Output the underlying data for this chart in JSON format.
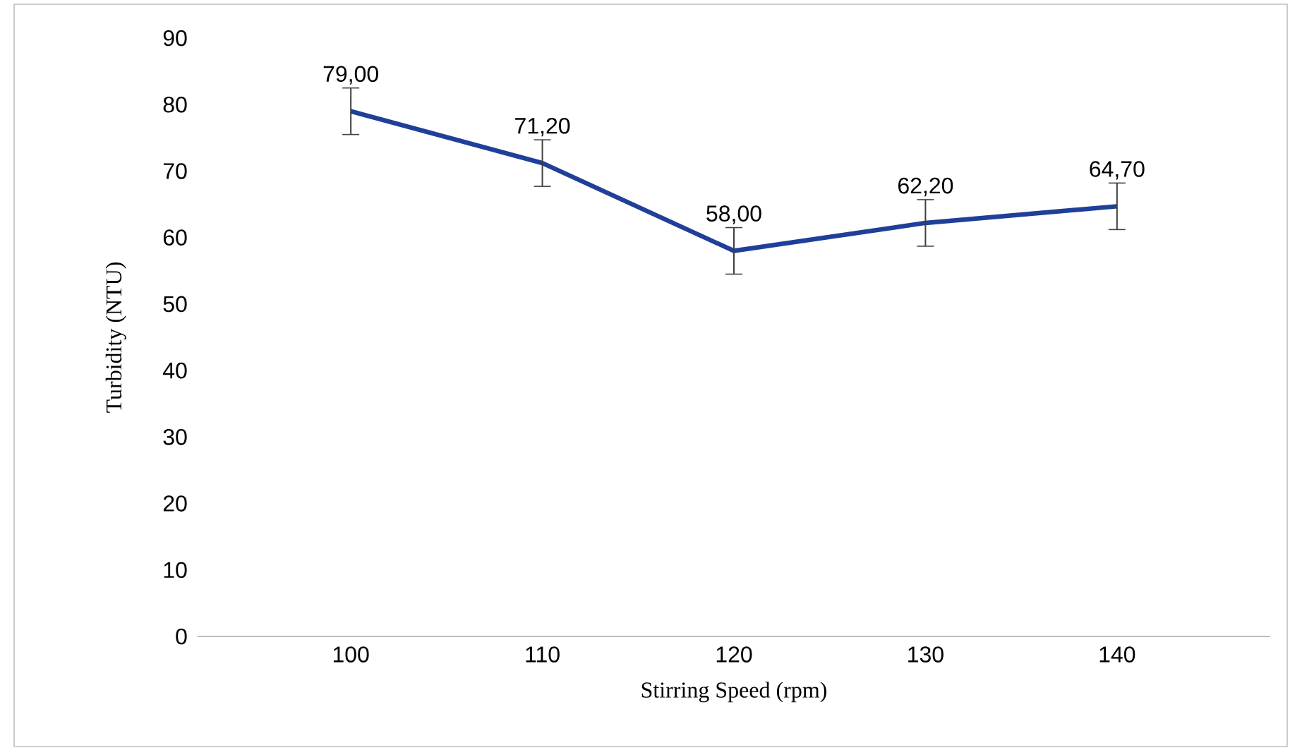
{
  "chart_data": {
    "type": "line",
    "xlabel": "Stirring Speed (rpm)",
    "ylabel": "Turbidity (NTU)",
    "categories": [
      "100",
      "110",
      "120",
      "130",
      "140"
    ],
    "values": [
      79.0,
      71.2,
      58.0,
      62.2,
      64.7
    ],
    "errors": [
      3.5,
      3.5,
      3.5,
      3.5,
      3.5
    ],
    "value_labels": [
      "79,00",
      "71,20",
      "58,00",
      "62,20",
      "64,70"
    ],
    "color": "#1f3f99",
    "marker": "none",
    "line_style": "solid",
    "grid": false,
    "ylim": [
      0,
      90
    ],
    "yticks": [
      0,
      10,
      20,
      30,
      40,
      50,
      60,
      70,
      80,
      90
    ]
  }
}
